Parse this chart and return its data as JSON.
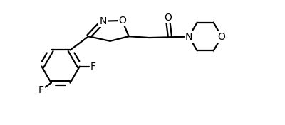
{
  "bg_color": "#ffffff",
  "line_color": "#000000",
  "line_width": 1.6,
  "font_size": 10,
  "fig_width": 4.0,
  "fig_height": 1.76,
  "dpi": 100,
  "xlim": [
    0,
    10.5
  ],
  "ylim": [
    0,
    4.6
  ]
}
